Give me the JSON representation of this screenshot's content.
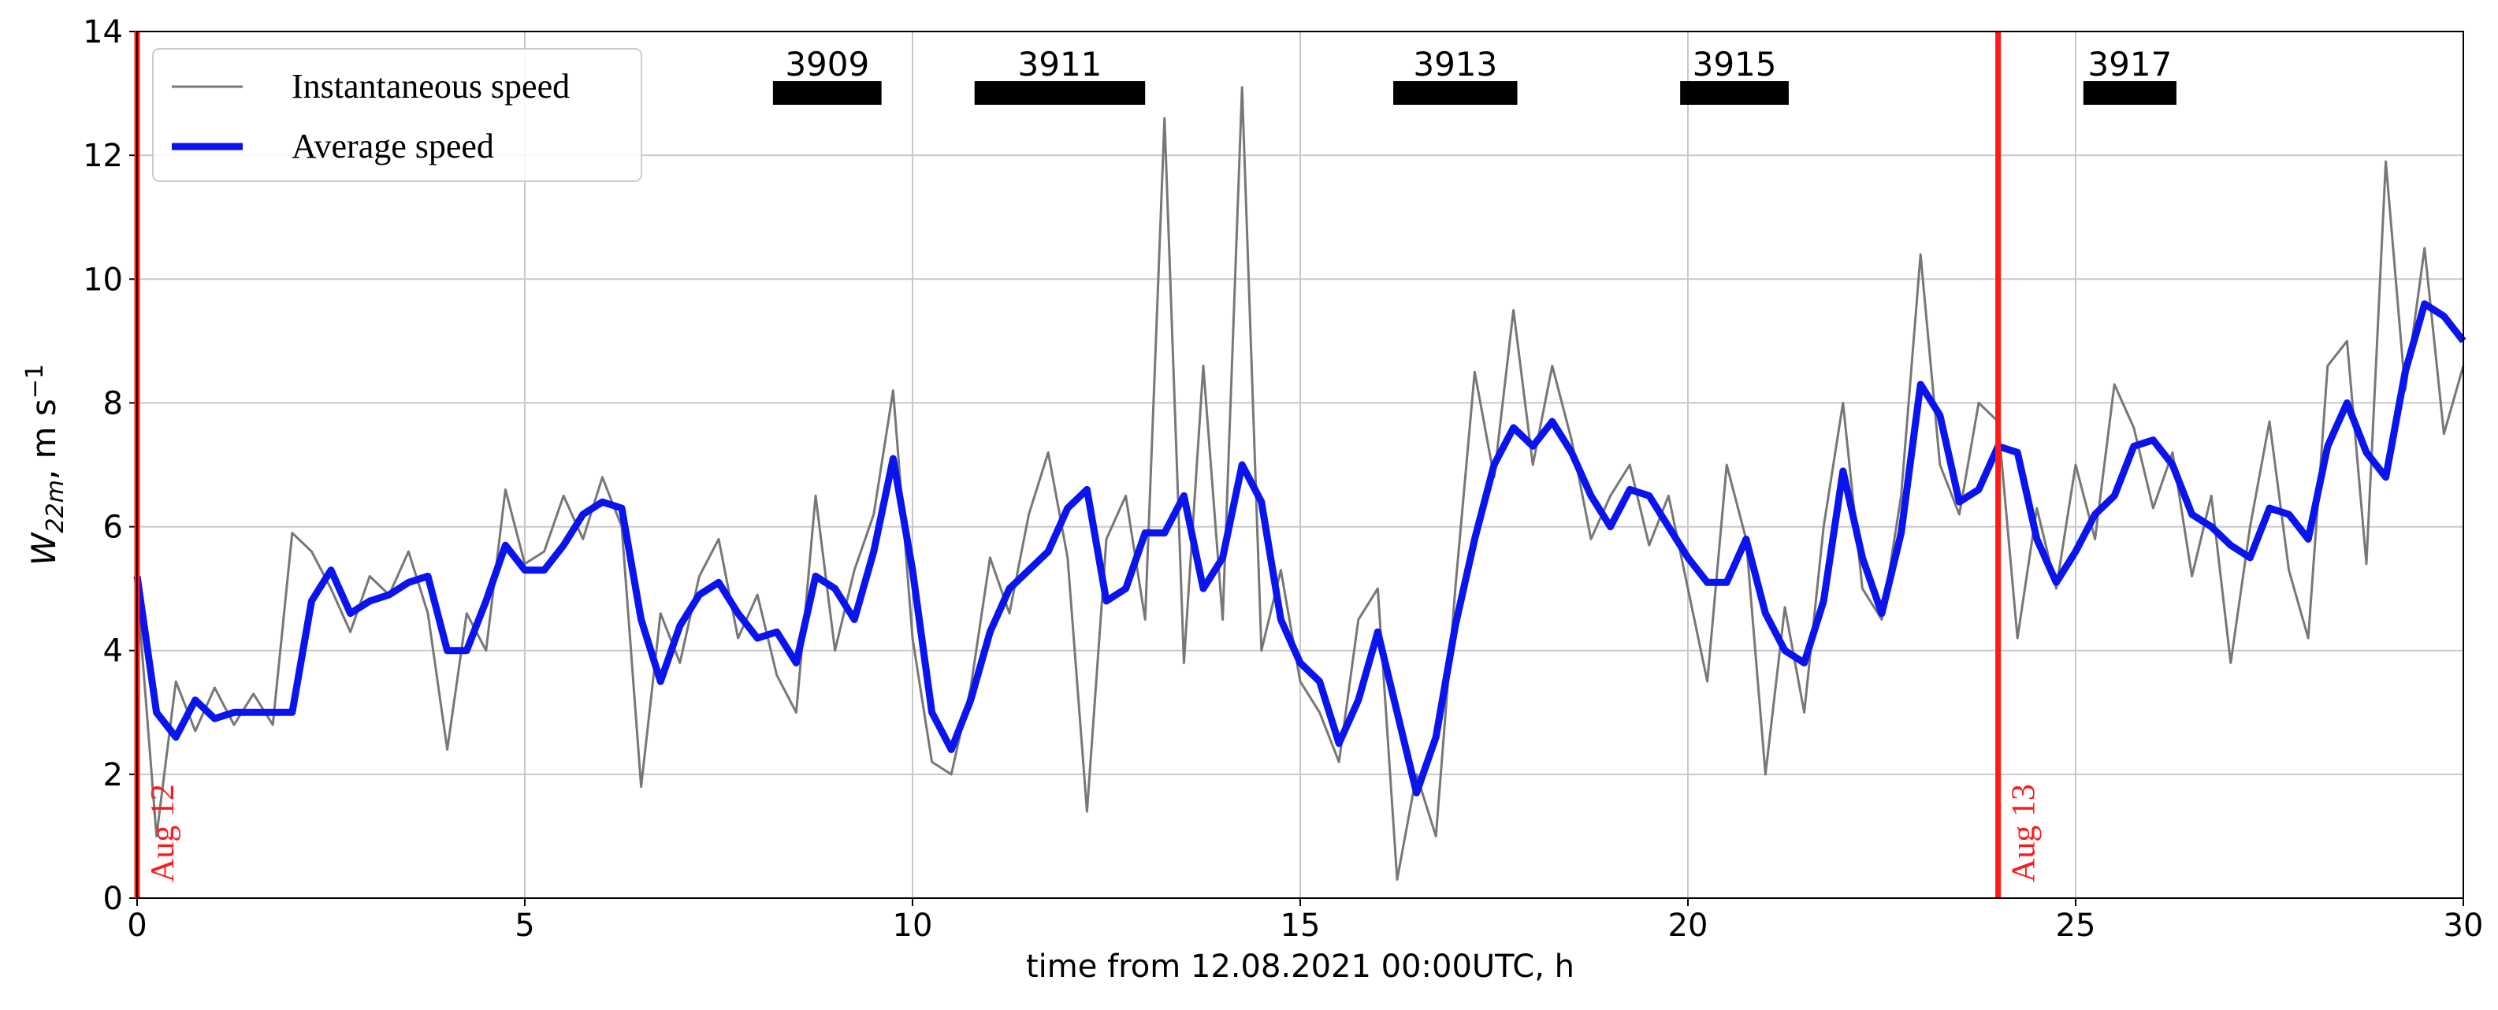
{
  "chart_data": {
    "type": "line",
    "x_label": "time from 12.08.2021 00:00UTC, h",
    "y_label": {
      "base": "W",
      "sub": "22m",
      "unit": ", m s",
      "sup": "−1"
    },
    "xlim": [
      0,
      30
    ],
    "ylim": [
      0,
      14
    ],
    "xticks": [
      0,
      5,
      10,
      15,
      20,
      25,
      30
    ],
    "yticks": [
      0,
      2,
      4,
      6,
      8,
      10,
      12,
      14
    ],
    "grid": true,
    "legend": "upper left",
    "x": [
      0,
      0.25,
      0.5,
      0.75,
      1,
      1.25,
      1.5,
      1.75,
      2,
      2.25,
      2.5,
      2.75,
      3,
      3.25,
      3.5,
      3.75,
      4,
      4.25,
      4.5,
      4.75,
      5,
      5.25,
      5.5,
      5.75,
      6,
      6.25,
      6.5,
      6.75,
      7,
      7.25,
      7.5,
      7.75,
      8,
      8.25,
      8.5,
      8.75,
      9,
      9.25,
      9.5,
      9.75,
      10,
      10.25,
      10.5,
      10.75,
      11,
      11.25,
      11.5,
      11.75,
      12,
      12.25,
      12.5,
      12.75,
      13,
      13.25,
      13.5,
      13.75,
      14,
      14.25,
      14.5,
      14.75,
      15,
      15.25,
      15.5,
      15.75,
      16,
      16.25,
      16.5,
      16.75,
      17,
      17.25,
      17.5,
      17.75,
      18,
      18.25,
      18.5,
      18.75,
      19,
      19.25,
      19.5,
      19.75,
      20,
      20.25,
      20.5,
      20.75,
      21,
      21.25,
      21.5,
      21.75,
      22,
      22.25,
      22.5,
      22.75,
      23,
      23.25,
      23.5,
      23.75,
      24,
      24.25,
      24.5,
      24.75,
      25,
      25.25,
      25.5,
      25.75,
      26,
      26.25,
      26.5,
      26.75,
      27,
      27.25,
      27.5,
      27.75,
      28,
      28.25,
      28.5,
      28.75,
      29,
      29.25,
      29.5,
      29.75,
      30
    ],
    "series": [
      {
        "name": "Instantaneous speed",
        "color": "#777777",
        "width": 3,
        "values": [
          5.0,
          1.0,
          3.5,
          2.7,
          3.4,
          2.8,
          3.3,
          2.8,
          5.9,
          5.6,
          5.0,
          4.3,
          5.2,
          4.9,
          5.6,
          4.6,
          2.4,
          4.6,
          4.0,
          6.6,
          5.4,
          5.6,
          6.5,
          5.8,
          6.8,
          6.0,
          1.8,
          4.6,
          3.8,
          5.2,
          5.8,
          4.2,
          4.9,
          3.6,
          3.0,
          6.5,
          4.0,
          5.3,
          6.2,
          8.2,
          4.2,
          2.2,
          2.0,
          3.4,
          5.5,
          4.6,
          6.2,
          7.2,
          5.5,
          1.4,
          5.8,
          6.5,
          4.5,
          12.6,
          3.8,
          8.6,
          4.5,
          13.1,
          4.0,
          5.3,
          3.5,
          3.0,
          2.2,
          4.5,
          5.0,
          0.3,
          2.0,
          1.0,
          5.0,
          8.5,
          6.8,
          9.5,
          7.0,
          8.6,
          7.4,
          5.8,
          6.5,
          7.0,
          5.7,
          6.5,
          5.0,
          3.5,
          7.0,
          5.8,
          2.0,
          4.7,
          3.0,
          6.0,
          8.0,
          5.0,
          4.5,
          6.5,
          10.4,
          7.0,
          6.2,
          8.0,
          7.7,
          4.2,
          6.3,
          5.0,
          7.0,
          5.8,
          8.3,
          7.6,
          6.3,
          7.2,
          5.2,
          6.5,
          3.8,
          6.0,
          7.7,
          5.3,
          4.2,
          8.6,
          9.0,
          5.4,
          11.9,
          8.2,
          10.5,
          7.5,
          8.6
        ]
      },
      {
        "name": "Average speed",
        "color": "#0a14ee",
        "width": 9,
        "values": [
          5.2,
          3.0,
          2.6,
          3.2,
          2.9,
          3.0,
          3.0,
          3.0,
          3.0,
          4.8,
          5.3,
          4.6,
          4.8,
          4.9,
          5.1,
          5.2,
          4.0,
          4.0,
          4.8,
          5.7,
          5.3,
          5.3,
          5.7,
          6.2,
          6.4,
          6.3,
          4.5,
          3.5,
          4.4,
          4.9,
          5.1,
          4.6,
          4.2,
          4.3,
          3.8,
          5.2,
          5.0,
          4.5,
          5.6,
          7.1,
          5.3,
          3.0,
          2.4,
          3.2,
          4.3,
          5.0,
          5.3,
          5.6,
          6.3,
          6.6,
          4.8,
          5.0,
          5.9,
          5.9,
          6.5,
          5.0,
          5.5,
          7.0,
          6.4,
          4.5,
          3.8,
          3.5,
          2.5,
          3.2,
          4.3,
          3.0,
          1.7,
          2.6,
          4.4,
          5.8,
          7.0,
          7.6,
          7.3,
          7.7,
          7.2,
          6.5,
          6.0,
          6.6,
          6.5,
          6.0,
          5.5,
          5.1,
          5.1,
          5.8,
          4.6,
          4.0,
          3.8,
          4.8,
          6.9,
          5.5,
          4.6,
          5.9,
          8.3,
          7.8,
          6.4,
          6.6,
          7.3,
          7.2,
          5.8,
          5.1,
          5.6,
          6.2,
          6.5,
          7.3,
          7.4,
          7.0,
          6.2,
          6.0,
          5.7,
          5.5,
          6.3,
          6.2,
          5.8,
          7.3,
          8.0,
          7.2,
          6.8,
          8.5,
          9.6,
          9.4,
          9.0
        ]
      }
    ],
    "vlines": [
      {
        "x": 0,
        "label": "Aug 12",
        "color": "#ff1a1a"
      },
      {
        "x": 24,
        "label": "Aug 13",
        "color": "#ff1a1a"
      }
    ],
    "periods": [
      {
        "label": "3909",
        "start": 8.2,
        "end": 9.6
      },
      {
        "label": "3911",
        "start": 10.8,
        "end": 13.0
      },
      {
        "label": "3913",
        "start": 16.2,
        "end": 17.8
      },
      {
        "label": "3915",
        "start": 19.9,
        "end": 21.3
      },
      {
        "label": "3917",
        "start": 25.1,
        "end": 26.3
      }
    ]
  }
}
